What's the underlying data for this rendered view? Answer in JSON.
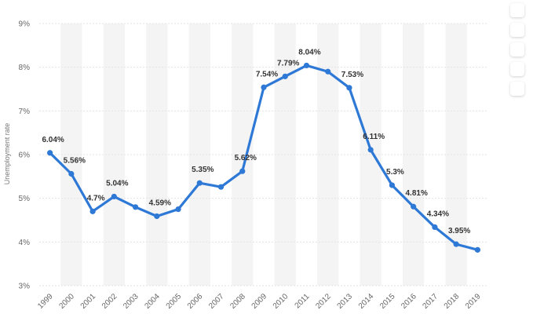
{
  "chart_data": {
    "type": "line",
    "ylabel": "Unemployment rate",
    "xlabel": "",
    "ylim": [
      3,
      9
    ],
    "yticks": [
      3,
      4,
      5,
      6,
      7,
      8,
      9
    ],
    "ytick_labels": [
      "3%",
      "4%",
      "5%",
      "6%",
      "7%",
      "8%",
      "9%"
    ],
    "grid": "horizontal",
    "categories": [
      "1999",
      "2000",
      "2001",
      "2002",
      "2003",
      "2004",
      "2005",
      "2006",
      "2007",
      "2008",
      "2009",
      "2010",
      "2011",
      "2012",
      "2013",
      "2014",
      "2015",
      "2016",
      "2017",
      "2018",
      "2019"
    ],
    "series": [
      {
        "values": [
          6.04,
          5.56,
          4.7,
          5.04,
          4.8,
          4.59,
          4.75,
          5.35,
          5.26,
          5.62,
          7.54,
          7.79,
          8.04,
          7.9,
          7.53,
          6.11,
          5.3,
          4.81,
          4.34,
          3.95,
          3.82
        ],
        "labels": [
          "6.04%",
          "5.56%",
          "4.7%",
          "5.04%",
          "",
          "4.59%",
          "",
          "5.35%",
          "",
          "5.62%",
          "7.54%",
          "7.79%",
          "8.04%",
          "",
          "7.53%",
          "6.11%",
          "5.3%",
          "4.81%",
          "4.34%",
          "3.95%",
          ""
        ]
      }
    ],
    "colors": {
      "line": "#2e78d6",
      "band": "#f4f4f4",
      "grid": "#e3e3e3"
    }
  },
  "toolbar": {
    "icons": [
      "favorite-icon",
      "notification-icon",
      "settings-icon",
      "share-icon",
      "print-icon"
    ]
  }
}
